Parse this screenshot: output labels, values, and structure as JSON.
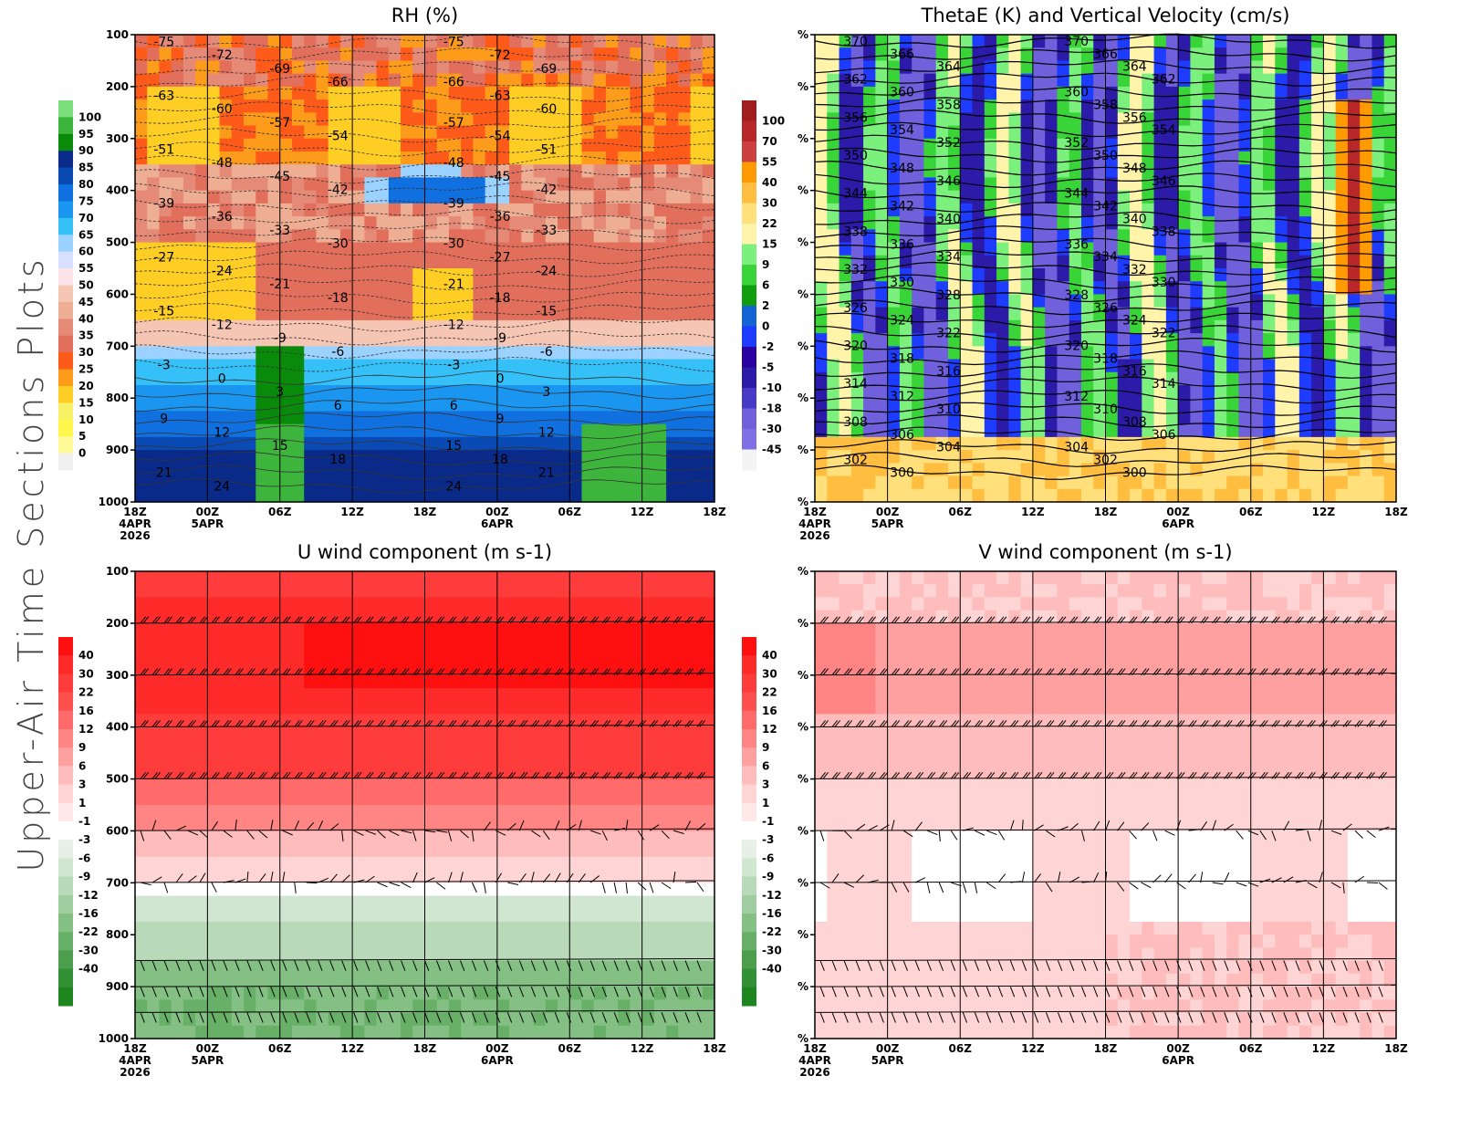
{
  "page_title": "Upper-Air Time Sections Plots",
  "chart_data": [
    {
      "type": "heatmap",
      "title": "RH (%)",
      "panel": "top-left",
      "xlabel": "",
      "ylabel": "",
      "y_ticks": [
        "100",
        "200",
        "300",
        "400",
        "500",
        "600",
        "700",
        "800",
        "900",
        "1000"
      ],
      "x_ticks": [
        {
          "label": "18Z",
          "sub": [
            "4APR",
            "2026"
          ]
        },
        {
          "label": "00Z",
          "sub": [
            "5APR"
          ]
        },
        {
          "label": "06Z",
          "sub": []
        },
        {
          "label": "12Z",
          "sub": []
        },
        {
          "label": "18Z",
          "sub": []
        },
        {
          "label": "00Z",
          "sub": [
            "6APR"
          ]
        },
        {
          "label": "06Z",
          "sub": []
        },
        {
          "label": "12Z",
          "sub": []
        },
        {
          "label": "18Z",
          "sub": []
        }
      ],
      "ylim": [
        1000,
        100
      ],
      "colorbar": {
        "location": "left",
        "labels": [
          "100",
          "95",
          "90",
          "85",
          "80",
          "75",
          "70",
          "65",
          "60",
          "55",
          "50",
          "45",
          "40",
          "35",
          "30",
          "25",
          "20",
          "15",
          "10",
          "5",
          "0"
        ],
        "colors": [
          "#7be07b",
          "#3db53d",
          "#0a8a0a",
          "#0a2a8a",
          "#0a4ab5",
          "#1070e0",
          "#1a95f0",
          "#35c0f8",
          "#9bd2ff",
          "#d8e0ff",
          "#fde4e8",
          "#f6c6b4",
          "#eeae94",
          "#e68a78",
          "#e26e5c",
          "#fe5a1a",
          "#fc9c1a",
          "#fece24",
          "#f8f066",
          "#fef64a",
          "#fefa98",
          "#f0f0f0"
        ]
      },
      "contour_overlay": "Temperature (C)",
      "contour_labels": [
        "-75",
        "-72",
        "-69",
        "-66",
        "-63",
        "-60",
        "-57",
        "-54",
        "-51",
        "-48",
        "-45",
        "-42",
        "-39",
        "-36",
        "-33",
        "-30",
        "-27",
        "-24",
        "-21",
        "-18",
        "-15",
        "-12",
        "-9",
        "-6",
        "-3",
        "0",
        "3",
        "6",
        "9",
        "12",
        "15",
        "18",
        "21",
        "24"
      ]
    },
    {
      "type": "heatmap",
      "title": "ThetaE (K) and Vertical Velocity (cm/s)",
      "panel": "top-right",
      "y_ticks": [
        "%",
        "%",
        "%",
        "%",
        "%",
        "%",
        "%",
        "%",
        "%",
        "%"
      ],
      "x_ticks": [
        {
          "label": "18Z",
          "sub": [
            "4APR",
            "2026"
          ]
        },
        {
          "label": "00Z",
          "sub": [
            "5APR"
          ]
        },
        {
          "label": "06Z",
          "sub": []
        },
        {
          "label": "12Z",
          "sub": []
        },
        {
          "label": "18Z",
          "sub": []
        },
        {
          "label": "00Z",
          "sub": [
            "6APR"
          ]
        },
        {
          "label": "06Z",
          "sub": []
        },
        {
          "label": "12Z",
          "sub": []
        },
        {
          "label": "18Z",
          "sub": []
        }
      ],
      "colorbar": {
        "location": "left",
        "labels": [
          "100",
          "70",
          "55",
          "40",
          "30",
          "22",
          "15",
          "9",
          "6",
          "2",
          "0",
          "-2",
          "-5",
          "-10",
          "-18",
          "-30",
          "-45"
        ],
        "colors": [
          "#a01e1e",
          "#b82828",
          "#cc4040",
          "#ff9a00",
          "#ffbe40",
          "#ffe07a",
          "#fff4aa",
          "#7cf07c",
          "#38d438",
          "#0e9e0e",
          "#1464d6",
          "#1e3cff",
          "#2a00a0",
          "#2c1aa8",
          "#4838c8",
          "#7060dc",
          "#8070e6",
          "#f4f4f4"
        ]
      },
      "contour_overlay": "ThetaE (K)",
      "contour_labels": [
        "370",
        "366",
        "364",
        "362",
        "360",
        "358",
        "356",
        "354",
        "352",
        "350",
        "348",
        "346",
        "344",
        "342",
        "340",
        "338",
        "336",
        "334",
        "332",
        "330",
        "328",
        "326",
        "324",
        "322",
        "320",
        "318",
        "316",
        "314",
        "312",
        "310",
        "308",
        "306",
        "304",
        "302",
        "300"
      ]
    },
    {
      "type": "heatmap",
      "title": "U wind component (m s-1)",
      "panel": "bottom-left",
      "y_ticks": [
        "100",
        "200",
        "300",
        "400",
        "500",
        "600",
        "700",
        "800",
        "900",
        "1000"
      ],
      "x_ticks": [
        {
          "label": "18Z",
          "sub": [
            "4APR",
            "2026"
          ]
        },
        {
          "label": "00Z",
          "sub": [
            "5APR"
          ]
        },
        {
          "label": "06Z",
          "sub": []
        },
        {
          "label": "12Z",
          "sub": []
        },
        {
          "label": "18Z",
          "sub": []
        },
        {
          "label": "00Z",
          "sub": [
            "6APR"
          ]
        },
        {
          "label": "06Z",
          "sub": []
        },
        {
          "label": "12Z",
          "sub": []
        },
        {
          "label": "18Z",
          "sub": []
        }
      ],
      "ylim": [
        1000,
        100
      ],
      "colorbar": {
        "location": "left",
        "labels": [
          "40",
          "30",
          "22",
          "16",
          "12",
          "9",
          "6",
          "3",
          "1",
          "-1",
          "-3",
          "-6",
          "-9",
          "-12",
          "-16",
          "-22",
          "-30",
          "-40"
        ],
        "colors": [
          "#ff1010",
          "#ff2a2a",
          "#ff3c3c",
          "#ff5050",
          "#ff6a6a",
          "#ff8484",
          "#ffa0a0",
          "#ffbcbc",
          "#ffd4d4",
          "#ffe8e8",
          "#ffffff",
          "#e6f0e6",
          "#d0e6d0",
          "#b8dab8",
          "#a0cea0",
          "#84c084",
          "#68b068",
          "#4c9e4c",
          "#349034",
          "#1e861e"
        ]
      },
      "barb_levels": [
        "200",
        "300",
        "400",
        "500",
        "600",
        "700",
        "850",
        "900",
        "950"
      ]
    },
    {
      "type": "heatmap",
      "title": "V wind component (m s-1)",
      "panel": "bottom-right",
      "y_ticks": [
        "%",
        "%",
        "%",
        "%",
        "%",
        "%",
        "%",
        "%",
        "%",
        "%"
      ],
      "x_ticks": [
        {
          "label": "18Z",
          "sub": [
            "4APR",
            "2026"
          ]
        },
        {
          "label": "00Z",
          "sub": [
            "5APR"
          ]
        },
        {
          "label": "06Z",
          "sub": []
        },
        {
          "label": "12Z",
          "sub": []
        },
        {
          "label": "18Z",
          "sub": []
        },
        {
          "label": "00Z",
          "sub": [
            "6APR"
          ]
        },
        {
          "label": "06Z",
          "sub": []
        },
        {
          "label": "12Z",
          "sub": []
        },
        {
          "label": "18Z",
          "sub": []
        }
      ],
      "colorbar": {
        "location": "left",
        "labels": [
          "40",
          "30",
          "22",
          "16",
          "12",
          "9",
          "6",
          "3",
          "1",
          "-1",
          "-3",
          "-6",
          "-9",
          "-12",
          "-16",
          "-22",
          "-30",
          "-40"
        ],
        "colors": [
          "#ff1010",
          "#ff2a2a",
          "#ff3c3c",
          "#ff5050",
          "#ff6a6a",
          "#ff8484",
          "#ffa0a0",
          "#ffbcbc",
          "#ffd4d4",
          "#ffe8e8",
          "#ffffff",
          "#e6f0e6",
          "#d0e6d0",
          "#b8dab8",
          "#a0cea0",
          "#84c084",
          "#68b068",
          "#4c9e4c",
          "#349034",
          "#1e861e"
        ]
      },
      "barb_levels": [
        "200",
        "300",
        "400",
        "500",
        "600",
        "700",
        "850",
        "900",
        "950"
      ]
    }
  ]
}
